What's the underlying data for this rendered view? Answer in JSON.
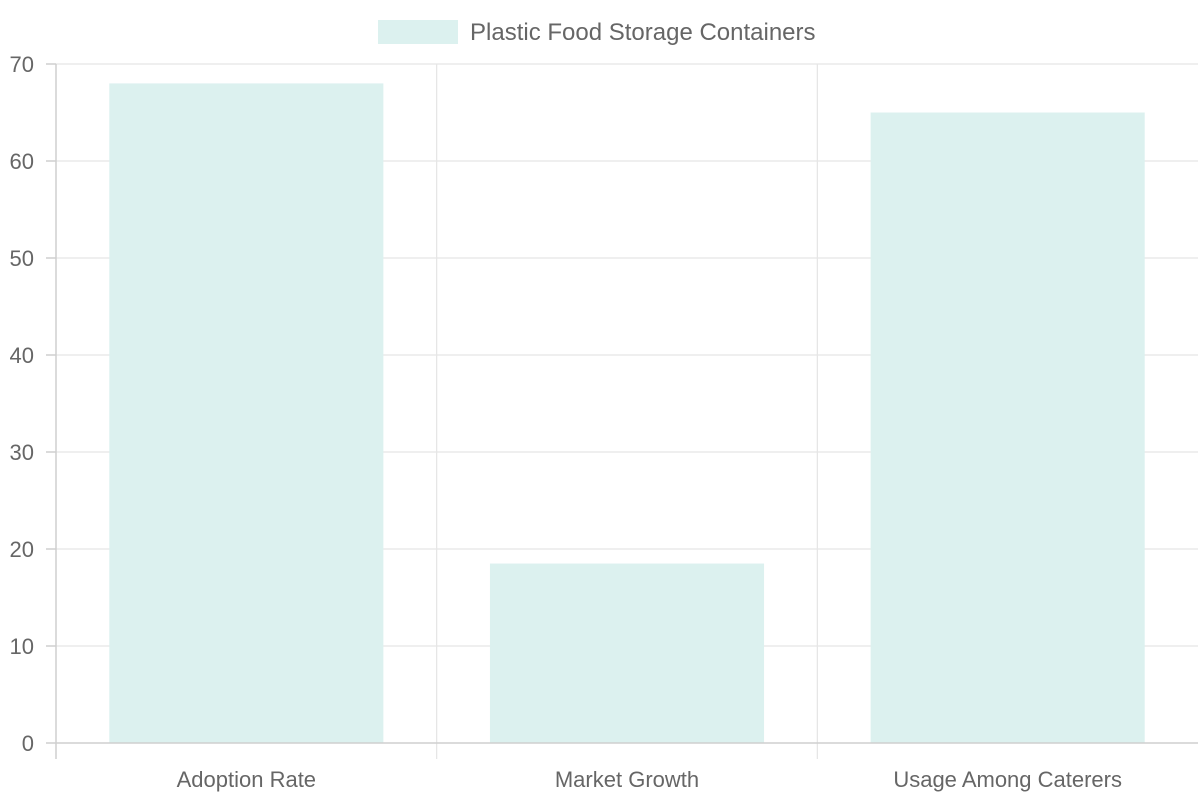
{
  "chart_data": {
    "type": "bar",
    "categories": [
      "Adoption Rate",
      "Market Growth",
      "Usage Among Caterers"
    ],
    "series": [
      {
        "name": "Plastic Food Storage Containers",
        "values": [
          68,
          18.5,
          65
        ],
        "color": "#dcf1ef"
      }
    ],
    "ylim": [
      0,
      70
    ],
    "yticks": [
      0,
      10,
      20,
      30,
      40,
      50,
      60,
      70
    ],
    "grid": true,
    "legend": "top-center"
  }
}
